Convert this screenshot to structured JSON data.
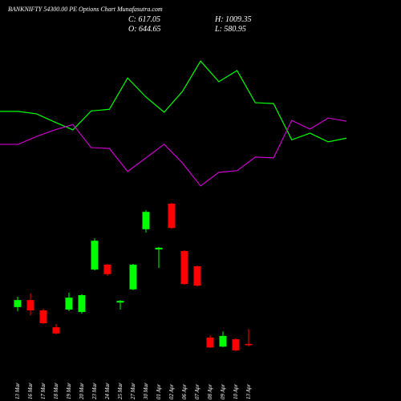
{
  "chart_data": [
    {
      "type": "candlestick",
      "title": "BANKNIFTY 54300.00 PE Options Chart Munafasutra.com",
      "annotations": [
        "C: 617.05",
        "O: 644.65",
        "H: 1009.35",
        "L: 580.95"
      ],
      "categories": [
        "13 Mar",
        "16 Mar",
        "17 Mar",
        "18 Mar",
        "19 Mar",
        "20 Mar",
        "23 Mar",
        "24 Mar",
        "25 Mar",
        "27 Mar",
        "30 Mar",
        "01 Apr",
        "02 Apr",
        "06 Apr",
        "07 Apr",
        "08 Apr",
        "09 Apr",
        "10 Apr",
        "13 Apr"
      ],
      "open": [
        1540,
        1710,
        1460,
        1050,
        1480,
        1420,
        2450,
        2570,
        1650,
        1970,
        3430,
        2940,
        4050,
        2900,
        2530,
        800,
        580,
        760,
        644.65
      ],
      "high": [
        1790,
        1870,
        1500,
        1130,
        1890,
        1850,
        3210,
        2590,
        1710,
        2590,
        3890,
        3000,
        4070,
        2920,
        2550,
        860,
        950,
        780,
        1009.35
      ],
      "low": [
        1440,
        1340,
        1130,
        880,
        1440,
        1380,
        2430,
        2300,
        1480,
        1950,
        3350,
        2490,
        3440,
        2080,
        2040,
        550,
        570,
        470,
        580.95
      ],
      "close": [
        1710,
        1460,
        1150,
        900,
        1770,
        1830,
        3150,
        2340,
        1690,
        2570,
        3850,
        2980,
        3460,
        2100,
        2060,
        560,
        840,
        490,
        617.05
      ],
      "up_color": "#00ff00",
      "down_color": "#ff0000",
      "ylim": [
        0,
        8000
      ]
    },
    {
      "type": "line",
      "categories": [
        null,
        null,
        null,
        null,
        null,
        null,
        null,
        null,
        null,
        null,
        null,
        null,
        null,
        null,
        null,
        null,
        null,
        null,
        null,
        null
      ],
      "series": [
        {
          "color": "#00ff00",
          "values": [
            6290,
            6290,
            6230,
            6030,
            5840,
            6300,
            6340,
            7100,
            6640,
            6270,
            6770,
            7510,
            7010,
            7280,
            6500,
            6480,
            5600,
            5760,
            5550,
            5640
          ]
        },
        {
          "color": "#cc00cc",
          "values": [
            5490,
            5490,
            5680,
            5840,
            5970,
            5410,
            5390,
            4830,
            5160,
            5490,
            5040,
            4480,
            4810,
            4850,
            5180,
            5160,
            6070,
            5860,
            6130,
            6050
          ]
        }
      ],
      "ylim": [
        0,
        8000
      ]
    }
  ]
}
